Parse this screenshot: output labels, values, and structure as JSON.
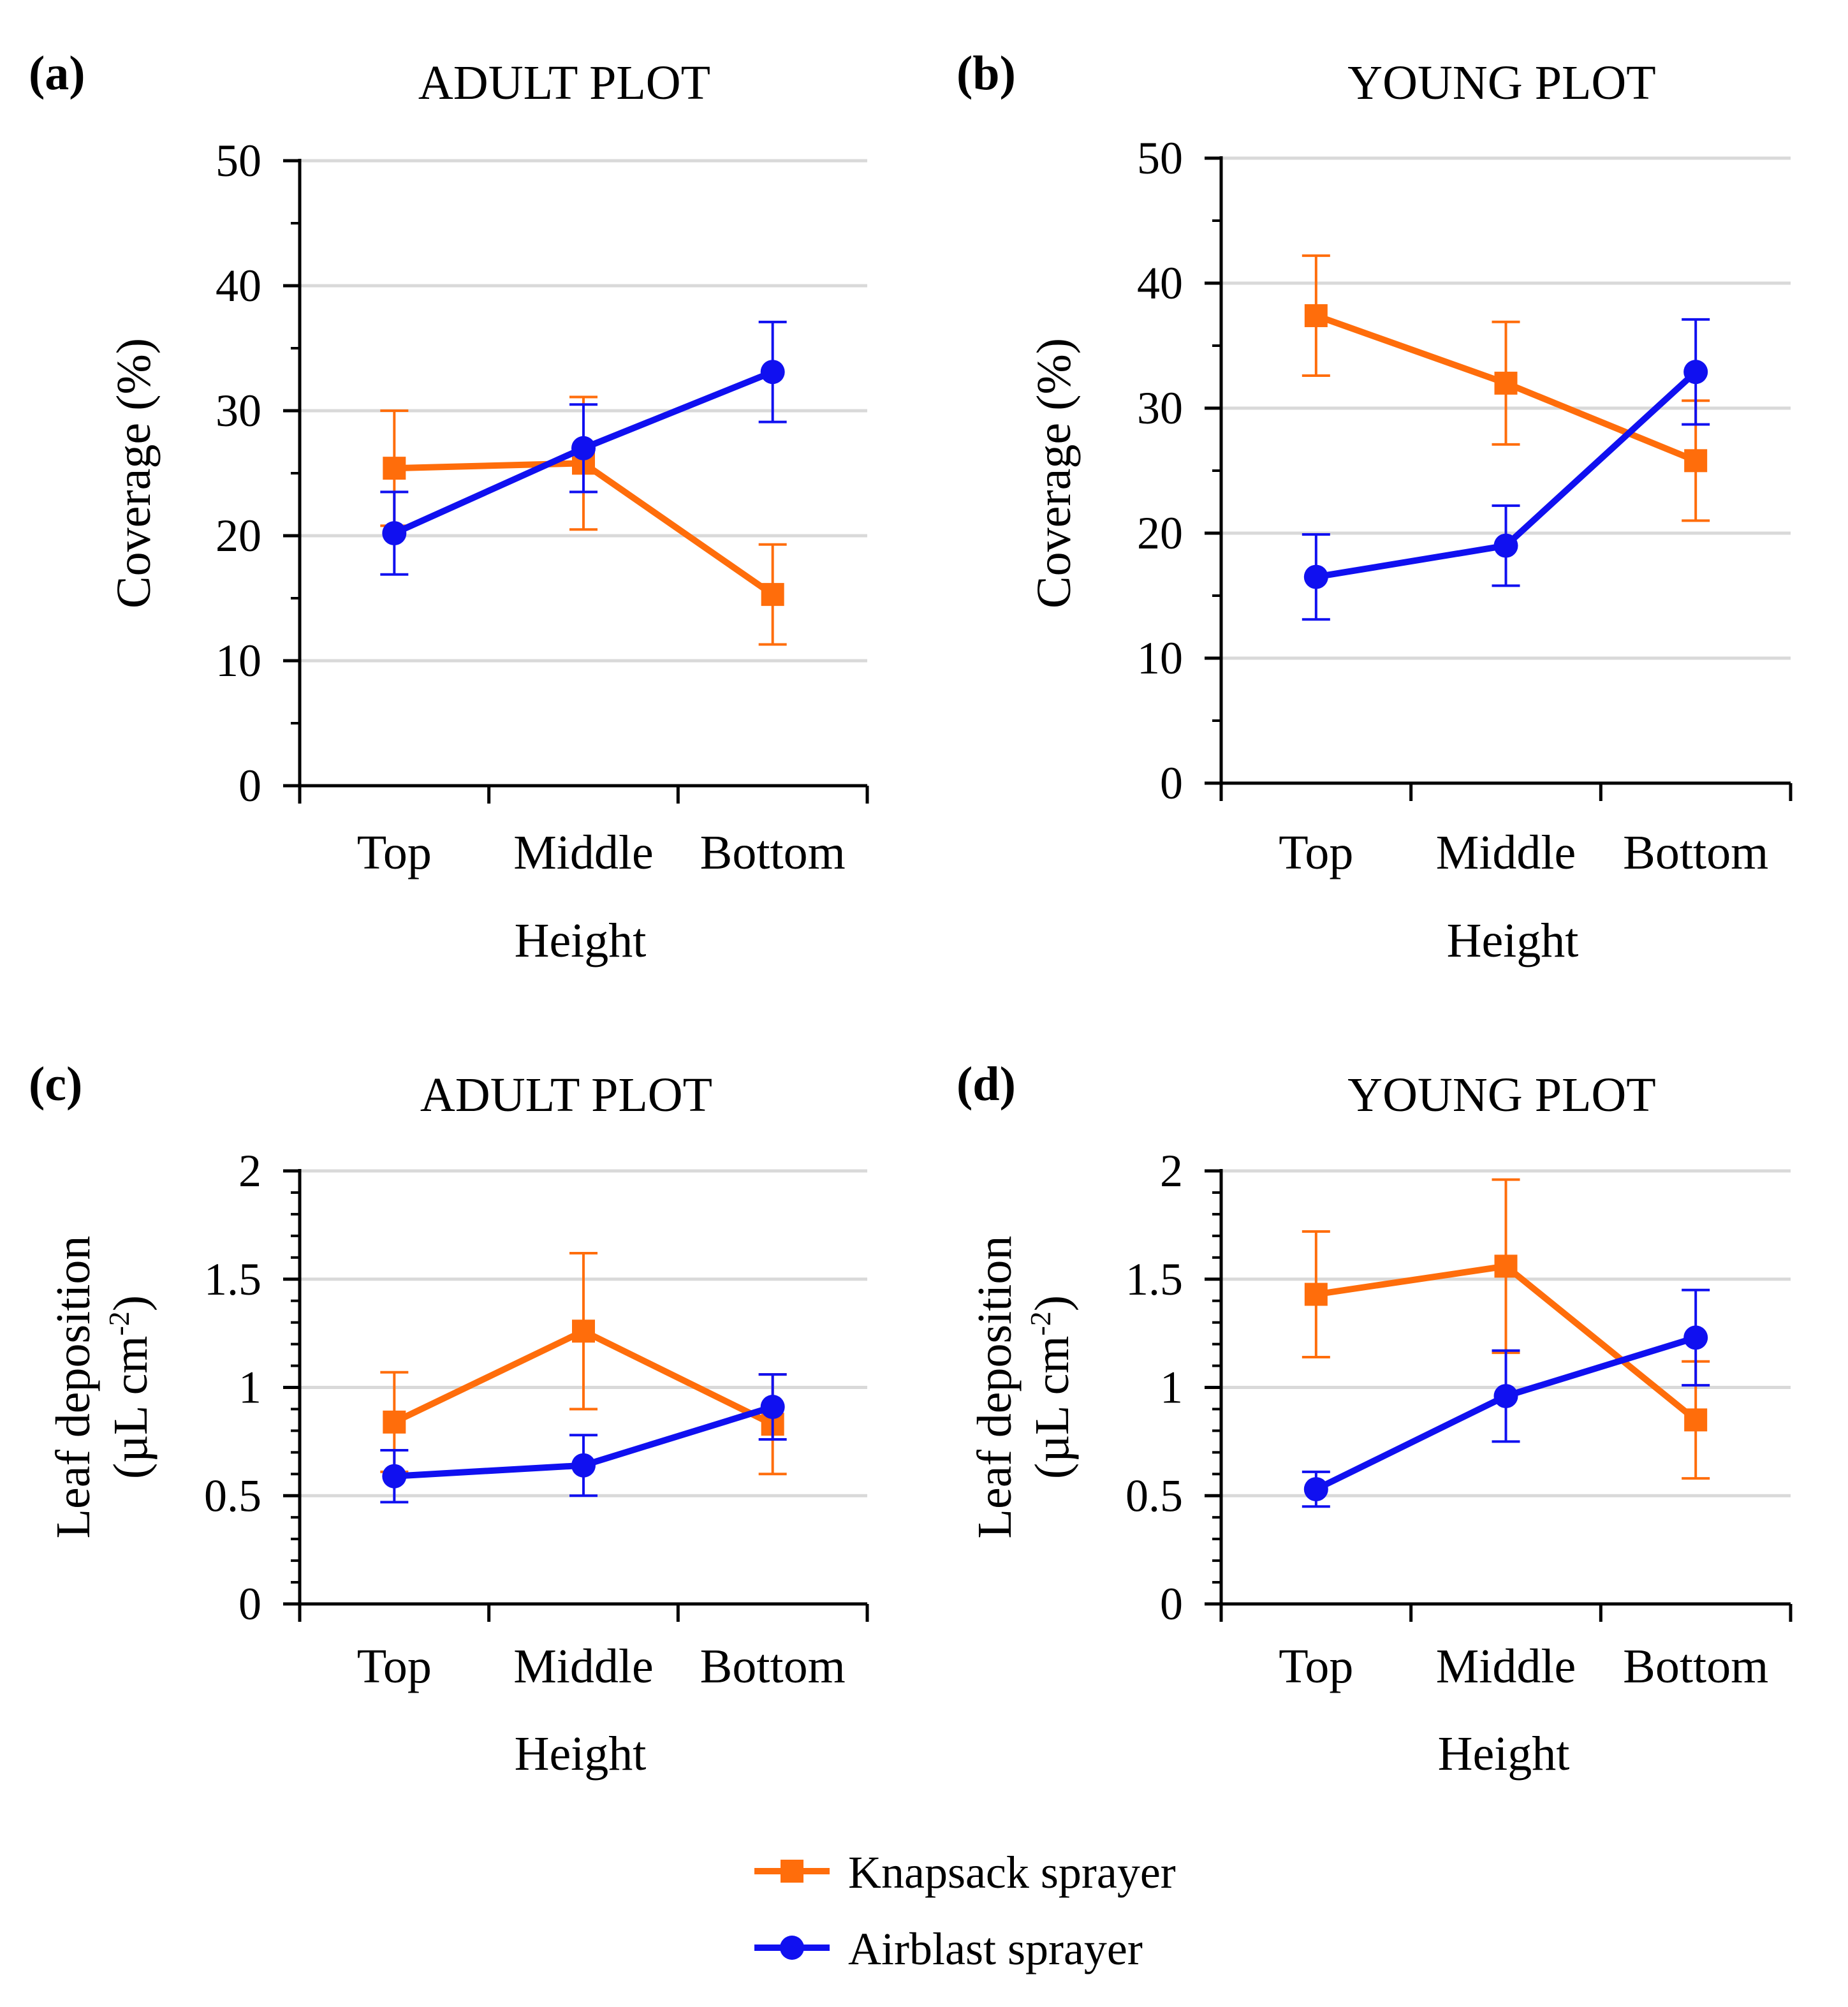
{
  "colors": {
    "knapsack": "#FF6D0B",
    "airblast": "#1010F0",
    "grid": "#D9D9D9",
    "axis": "#000000"
  },
  "legend": {
    "knapsack": "Knapsack sprayer",
    "airblast": "Airblast sprayer"
  },
  "chart_data": [
    {
      "panel": "(a)",
      "type": "line",
      "title": "ADULT PLOT",
      "xlabel": "Height",
      "ylabel": "Coverage (%)",
      "categories": [
        "Top",
        "Middle",
        "Bottom"
      ],
      "ylim": [
        0,
        50
      ],
      "yticks": [
        "0",
        "10",
        "20",
        "30",
        "40",
        "50"
      ],
      "ytick_values": [
        0,
        10,
        20,
        30,
        40,
        50
      ],
      "grid": true,
      "series": [
        {
          "name": "Knapsack sprayer",
          "color_key": "knapsack",
          "marker": "square",
          "values": [
            25.4,
            25.8,
            15.3
          ],
          "errors": [
            4.6,
            5.3,
            4.0
          ]
        },
        {
          "name": "Airblast sprayer",
          "color_key": "airblast",
          "marker": "circle",
          "values": [
            20.2,
            27.0,
            33.1
          ],
          "errors": [
            3.3,
            3.5,
            4.0
          ]
        }
      ]
    },
    {
      "panel": "(b)",
      "type": "line",
      "title": "YOUNG PLOT",
      "xlabel": "Height",
      "ylabel": "Coverage (%)",
      "categories": [
        "Top",
        "Middle",
        "Bottom"
      ],
      "ylim": [
        0,
        50
      ],
      "yticks": [
        "0",
        "10",
        "20",
        "30",
        "40",
        "50"
      ],
      "ytick_values": [
        0,
        10,
        20,
        30,
        40,
        50
      ],
      "grid": true,
      "series": [
        {
          "name": "Knapsack sprayer",
          "color_key": "knapsack",
          "marker": "square",
          "values": [
            37.4,
            32.0,
            25.8
          ],
          "errors": [
            4.8,
            4.9,
            4.8
          ]
        },
        {
          "name": "Airblast sprayer",
          "color_key": "airblast",
          "marker": "circle",
          "values": [
            16.5,
            19.0,
            32.9
          ],
          "errors": [
            3.4,
            3.2,
            4.2
          ]
        }
      ]
    },
    {
      "panel": "(c)",
      "type": "line",
      "title": "ADULT PLOT",
      "xlabel": "Height",
      "ylabel_line1": "Leaf deposition",
      "ylabel_line2": "(µL cm",
      "ylabel_sup": "-2",
      "ylabel_close": ")",
      "categories": [
        "Top",
        "Middle",
        "Bottom"
      ],
      "ylim": [
        0,
        2
      ],
      "yticks": [
        "0",
        "0.5",
        "1",
        "1.5",
        "2"
      ],
      "ytick_values": [
        0,
        0.5,
        1,
        1.5,
        2
      ],
      "grid": true,
      "series": [
        {
          "name": "Knapsack sprayer",
          "color_key": "knapsack",
          "marker": "square",
          "values": [
            0.84,
            1.26,
            0.83
          ],
          "errors": [
            0.23,
            0.36,
            0.23
          ]
        },
        {
          "name": "Airblast sprayer",
          "color_key": "airblast",
          "marker": "circle",
          "values": [
            0.59,
            0.64,
            0.91
          ],
          "errors": [
            0.12,
            0.14,
            0.15
          ]
        }
      ]
    },
    {
      "panel": "(d)",
      "type": "line",
      "title": "YOUNG PLOT",
      "xlabel": "Height",
      "ylabel_line1": "Leaf deposition",
      "ylabel_line2": "(µL cm",
      "ylabel_sup": "-2",
      "ylabel_close": ")",
      "categories": [
        "Top",
        "Middle",
        "Bottom"
      ],
      "ylim": [
        0,
        2
      ],
      "yticks": [
        "0",
        "0.5",
        "1",
        "1.5",
        "2"
      ],
      "ytick_values": [
        0,
        0.5,
        1,
        1.5,
        2
      ],
      "grid": true,
      "series": [
        {
          "name": "Knapsack sprayer",
          "color_key": "knapsack",
          "marker": "square",
          "values": [
            1.43,
            1.56,
            0.85
          ],
          "errors": [
            0.29,
            0.4,
            0.27
          ]
        },
        {
          "name": "Airblast sprayer",
          "color_key": "airblast",
          "marker": "circle",
          "values": [
            0.53,
            0.96,
            1.23
          ],
          "errors": [
            0.08,
            0.21,
            0.22
          ]
        }
      ]
    }
  ]
}
